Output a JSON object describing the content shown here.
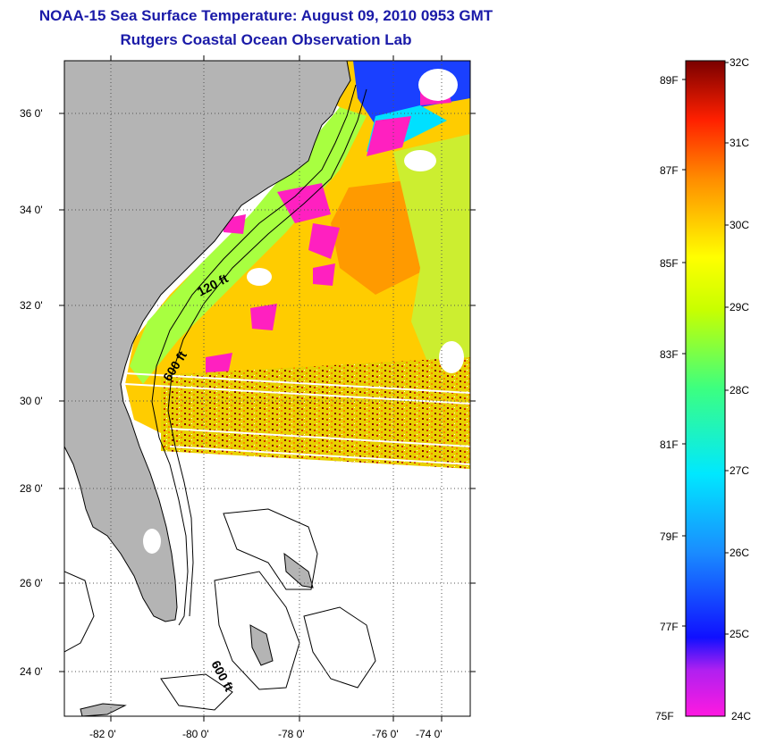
{
  "title": {
    "line1": "NOAA-15 Sea Surface Temperature:  August 09, 2010 0953 GMT",
    "line2": "Rutgers Coastal Ocean Observation Lab"
  },
  "map": {
    "lat_labels": [
      "36 0'",
      "34 0'",
      "32 0'",
      "30 0'",
      "28 0'",
      "26 0'",
      "24 0'"
    ],
    "lon_labels": [
      "-82 0'",
      "-80 0'",
      "-78 0'",
      "-76 0'",
      "-74 0'"
    ],
    "contour_labels": [
      "120 ft",
      "600 ft",
      "600 ft"
    ],
    "land_color": "#b4b4b4"
  },
  "colorbar": {
    "f_labels": [
      "89F",
      "87F",
      "85F",
      "83F",
      "81F",
      "79F",
      "77F",
      "75F"
    ],
    "c_labels": [
      "32C",
      "31C",
      "30C",
      "29C",
      "28C",
      "27C",
      "26C",
      "25C",
      "24C"
    ],
    "colors": [
      "#800000",
      "#ff0000",
      "#ff8000",
      "#ffff00",
      "#80ff00",
      "#00ffff",
      "#0080ff",
      "#0000ff",
      "#ff00ff"
    ]
  }
}
